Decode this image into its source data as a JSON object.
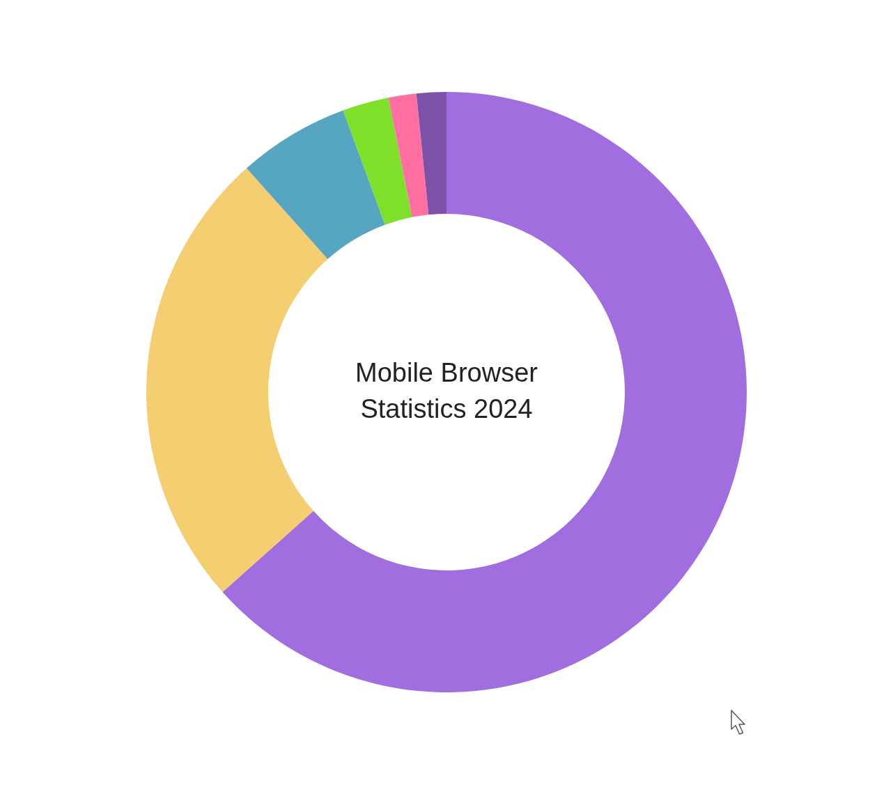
{
  "chart_data": {
    "type": "donut",
    "title": "Mobile Browser Statistics 2024",
    "categories": [
      null,
      null,
      null,
      null,
      null,
      null
    ],
    "values": [
      63.4,
      25.0,
      6.0,
      2.5,
      1.5,
      1.6
    ],
    "colors": [
      "#a06edf",
      "#f5ce72",
      "#56a5c1",
      "#7fe02a",
      "#ff6fa2",
      "#7b52a8"
    ]
  }
}
